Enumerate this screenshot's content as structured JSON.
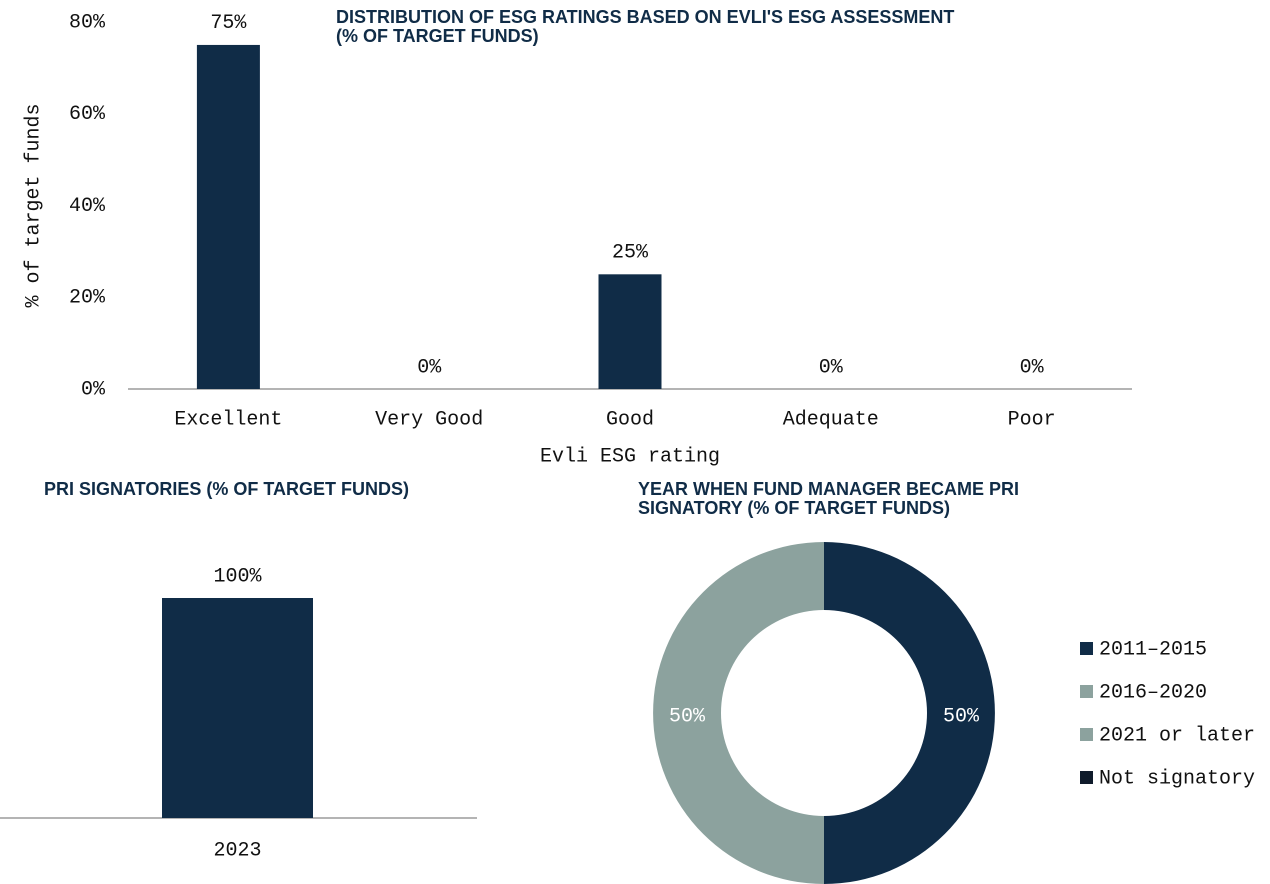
{
  "chart_data": [
    {
      "type": "bar",
      "title": "DISTRIBUTION OF ESG RATINGS BASED ON EVLI'S ESG ASSESSMENT (% OF TARGET FUNDS)",
      "x_label": "Evli ESG rating",
      "y_label": "% of target funds",
      "categories": [
        "Excellent",
        "Very Good",
        "Good",
        "Adequate",
        "Poor"
      ],
      "values": [
        75,
        0,
        25,
        0,
        0
      ],
      "value_labels": [
        "75%",
        "0%",
        "25%",
        "0%",
        "0%"
      ],
      "color": "#102c47",
      "ylim": [
        0,
        80
      ],
      "yticks": [
        {
          "value": 0,
          "label": "0%"
        },
        {
          "value": 20,
          "label": "20%"
        },
        {
          "value": 40,
          "label": "40%"
        },
        {
          "value": 60,
          "label": "60%"
        },
        {
          "value": 80,
          "label": "80%"
        }
      ]
    },
    {
      "type": "bar",
      "title": "PRI SIGNATORIES (% OF TARGET FUNDS)",
      "categories": [
        "2023"
      ],
      "values": [
        100
      ],
      "value_labels": [
        "100%"
      ],
      "color": "#102c47",
      "ylim": [
        0,
        130
      ]
    },
    {
      "type": "pie",
      "title": "YEAR WHEN FUND MANAGER BECAME PRI SIGNATORY (% OF TARGET FUNDS)",
      "categories": [
        "2011–2015",
        "2016–2020",
        "2021 or later",
        "Not signatory"
      ],
      "values": [
        50,
        50,
        0,
        0
      ],
      "value_labels": [
        "50%",
        "50%",
        null,
        null
      ],
      "colors": [
        "#102c47",
        "#8ca29e",
        "#8ca29e",
        "#0f1b2b"
      ]
    }
  ]
}
